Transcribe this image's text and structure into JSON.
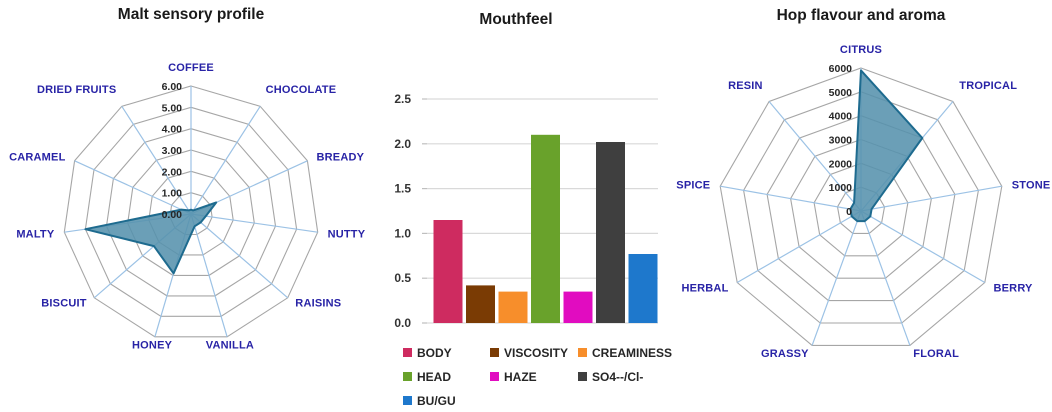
{
  "chart_data": [
    {
      "id": "malt",
      "type": "radar",
      "title": "Malt sensory profile",
      "categories": [
        "COFFEE",
        "CHOCOLATE",
        "BREADY",
        "NUTTY",
        "RAISINS",
        "VANILLA",
        "HONEY",
        "BISCUIT",
        "MALTY",
        "CARAMEL",
        "DRIED FRUITS"
      ],
      "values": [
        0.2,
        0.2,
        1.3,
        0.7,
        0.6,
        0.6,
        2.9,
        2.3,
        5.0,
        0.5,
        0.2
      ],
      "axis_range": [
        0,
        6
      ],
      "ring_labels": [
        "0.00",
        "1.00",
        "2.00",
        "3.00",
        "4.00",
        "5.00",
        "6.00"
      ],
      "grid": "on",
      "legend_position": "none",
      "colors": {
        "fill": "#5792AD",
        "stroke": "#1E6B8F",
        "axis": "#9CC2E5",
        "grid": "#A6A6A6",
        "category_label": "#2823A6"
      }
    },
    {
      "id": "mouthfeel",
      "type": "bar",
      "title": "Mouthfeel",
      "categories": [
        "BODY",
        "VISCOSITY",
        "CREAMINESS",
        "HEAD",
        "HAZE",
        "SO4--/Cl-",
        "BU/GU"
      ],
      "values": [
        1.15,
        0.42,
        0.35,
        2.1,
        0.35,
        2.02,
        0.77
      ],
      "bar_colors": [
        "#CE2B60",
        "#7A3B04",
        "#F78E2B",
        "#69A22B",
        "#E10CC0",
        "#3F3F3F",
        "#1E78CC"
      ],
      "ylim": [
        0,
        2.5
      ],
      "ytick_step": 0.5,
      "ytick_labels": [
        "0.0",
        "0.5",
        "1.0",
        "1.5",
        "2.0",
        "2.5"
      ],
      "xlabel": "",
      "ylabel": "",
      "grid": "on",
      "legend_position": "bottom",
      "colors": {
        "gridline": "#D9D9D9",
        "tick": "#BFBFBF"
      }
    },
    {
      "id": "hop",
      "type": "radar",
      "title": "Hop flavour and aroma",
      "categories": [
        "CITRUS",
        "TROPICAL",
        "STONE",
        "BERRY",
        "FLORAL",
        "GRASSY",
        "HERBAL",
        "SPICE",
        "RESIN"
      ],
      "values": [
        5900,
        4000,
        450,
        450,
        450,
        450,
        450,
        450,
        450
      ],
      "axis_range": [
        0,
        6000
      ],
      "ring_labels": [
        "0",
        "1000",
        "2000",
        "3000",
        "4000",
        "5000",
        "6000"
      ],
      "grid": "on",
      "legend_position": "none",
      "colors": {
        "fill": "#5792AD",
        "stroke": "#1E6B8F",
        "axis": "#9CC2E5",
        "grid": "#A6A6A6",
        "category_label": "#2823A6"
      }
    }
  ]
}
